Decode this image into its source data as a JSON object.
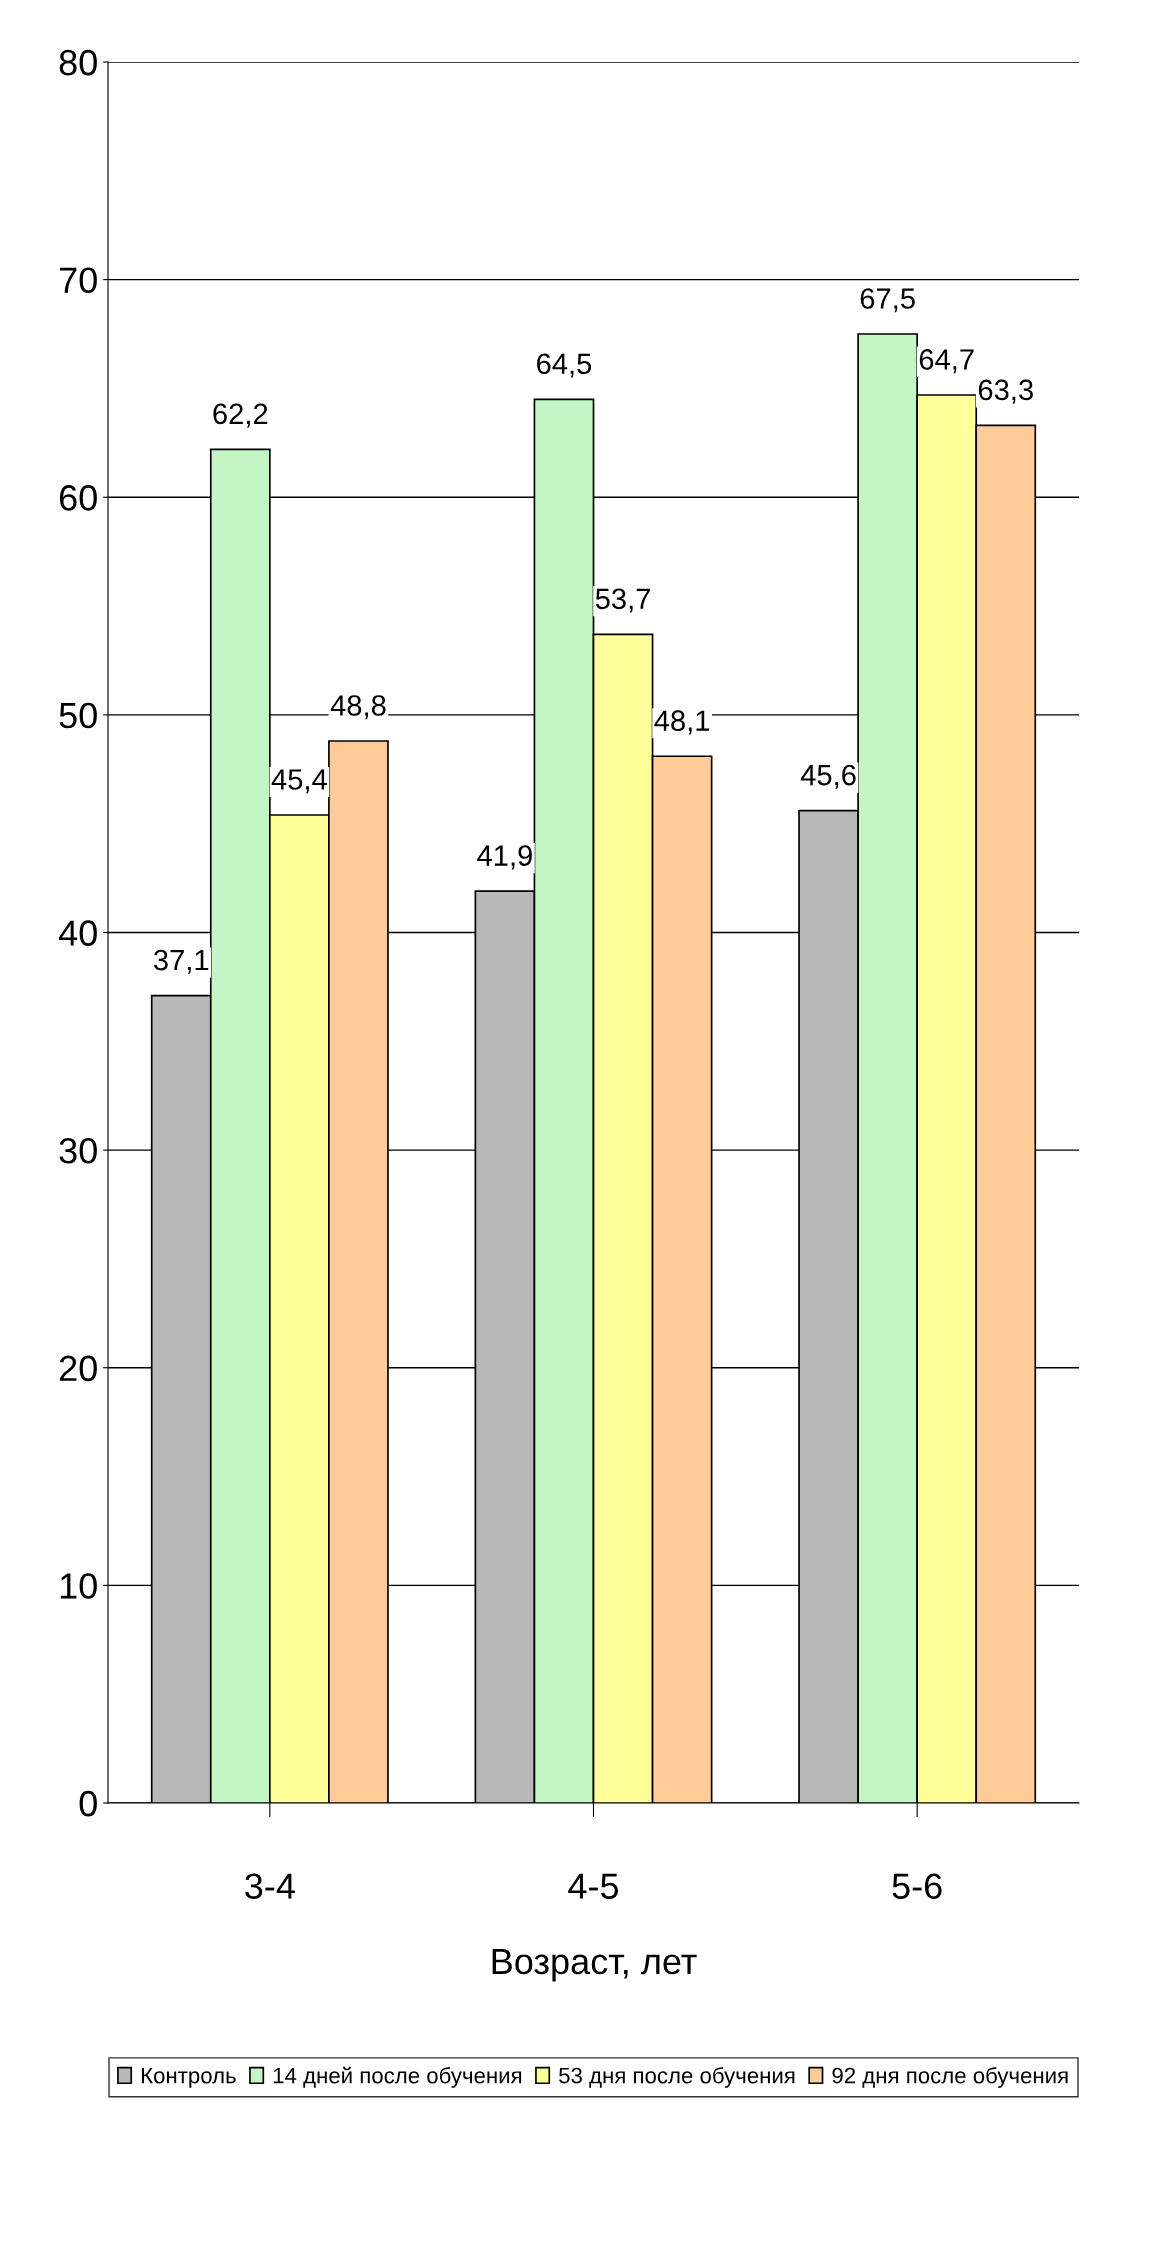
{
  "chart_data": {
    "type": "bar",
    "xlabel": "Возраст, лет",
    "categories": [
      "3-4",
      "4-5",
      "5-6"
    ],
    "series": [
      {
        "name": "Контроль",
        "color": "#b8b8b8",
        "values": [
          37.1,
          41.9,
          45.6
        ],
        "value_labels": [
          "37,1",
          "41,9",
          "45,6"
        ]
      },
      {
        "name": "14 дней после обучения",
        "color": "#c4f5c4",
        "values": [
          62.2,
          64.5,
          67.5
        ],
        "value_labels": [
          "62,2",
          "64,5",
          "67,5"
        ]
      },
      {
        "name": "53 дня после обучения",
        "color": "#ffff99",
        "values": [
          45.4,
          53.7,
          64.7
        ],
        "value_labels": [
          "45,4",
          "53,7",
          "64,7"
        ]
      },
      {
        "name": "92 дня после обучения",
        "color": "#ffcc99",
        "values": [
          48.8,
          48.1,
          63.3
        ],
        "value_labels": [
          "48,8",
          "48,1",
          "63,3"
        ]
      }
    ],
    "ylim": [
      0,
      80
    ],
    "yticks": [
      0,
      10,
      20,
      30,
      40,
      50,
      60,
      70,
      80
    ],
    "grid": "y",
    "legend": "bottom"
  }
}
